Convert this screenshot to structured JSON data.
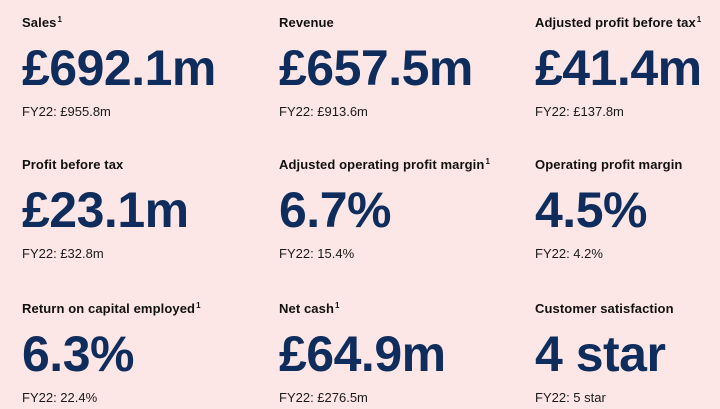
{
  "colors": {
    "background": "#fce6e6",
    "value": "#0e2d5c",
    "label": "#111111"
  },
  "kpis": [
    {
      "label": "Sales",
      "footnote": "1",
      "value": "£692.1m",
      "prior": "FY22: £955.8m"
    },
    {
      "label": "Revenue",
      "footnote": "",
      "value": "£657.5m",
      "prior": "FY22: £913.6m"
    },
    {
      "label": "Adjusted profit before tax",
      "footnote": "1",
      "value": "£41.4m",
      "prior": "FY22: £137.8m"
    },
    {
      "label": "Profit before tax",
      "footnote": "",
      "value": "£23.1m",
      "prior": "FY22: £32.8m"
    },
    {
      "label": "Adjusted operating profit margin",
      "footnote": "1",
      "value": "6.7%",
      "prior": "FY22: 15.4%"
    },
    {
      "label": "Operating profit margin",
      "footnote": "",
      "value": "4.5%",
      "prior": "FY22: 4.2%"
    },
    {
      "label": "Return on capital employed",
      "footnote": "1",
      "value": "6.3%",
      "prior": "FY22: 22.4%"
    },
    {
      "label": "Net cash",
      "footnote": "1",
      "value": "£64.9m",
      "prior": "FY22: £276.5m"
    },
    {
      "label": "Customer satisfaction",
      "footnote": "",
      "value": "4 star",
      "prior": "FY22: 5 star"
    }
  ]
}
